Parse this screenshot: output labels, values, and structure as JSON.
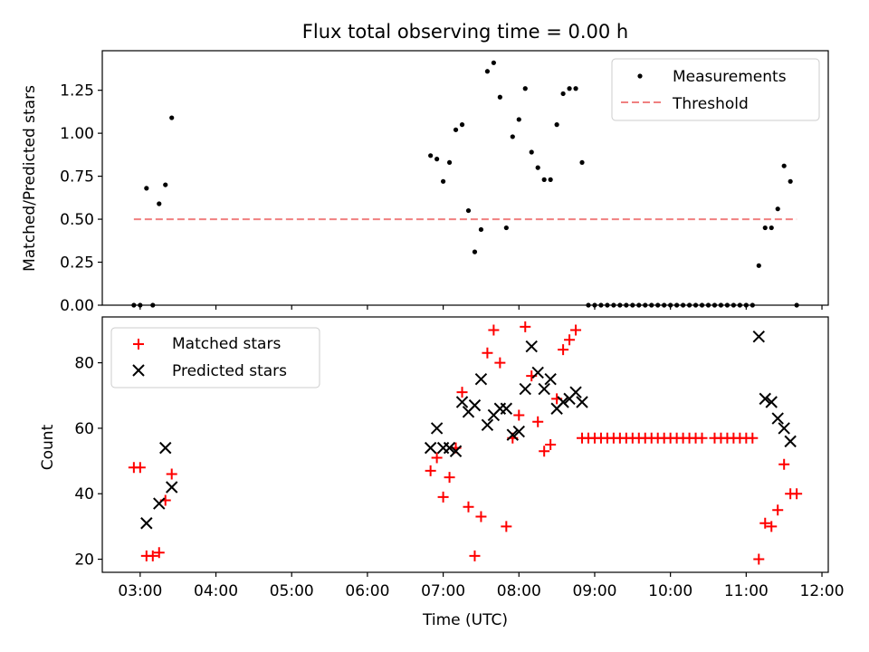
{
  "chart_data": [
    {
      "type": "scatter",
      "title": "Flux total observing time = 0.00 h",
      "ylabel": "Matched/Predicted stars",
      "xlabel": "",
      "xlim": [
        "02:30",
        "12:05"
      ],
      "ylim": [
        0,
        1.48
      ],
      "yticks": [
        "0.00",
        "0.25",
        "0.50",
        "0.75",
        "1.00",
        "1.25"
      ],
      "legend_position": "top-right",
      "legend": [
        "Measurements",
        "Threshold"
      ],
      "series": [
        {
          "name": "Measurements",
          "marker": "dot",
          "color": "#000000",
          "points": [
            [
              "02:55",
              0.0
            ],
            [
              "03:00",
              0.0
            ],
            [
              "03:05",
              0.68
            ],
            [
              "03:10",
              0.0
            ],
            [
              "03:15",
              0.59
            ],
            [
              "03:20",
              0.7
            ],
            [
              "03:25",
              1.09
            ],
            [
              "06:50",
              0.87
            ],
            [
              "06:55",
              0.85
            ],
            [
              "07:00",
              0.72
            ],
            [
              "07:05",
              0.83
            ],
            [
              "07:10",
              1.02
            ],
            [
              "07:15",
              1.05
            ],
            [
              "07:20",
              0.55
            ],
            [
              "07:25",
              0.31
            ],
            [
              "07:30",
              0.44
            ],
            [
              "07:35",
              1.36
            ],
            [
              "07:40",
              1.41
            ],
            [
              "07:45",
              1.21
            ],
            [
              "07:50",
              0.45
            ],
            [
              "07:55",
              0.98
            ],
            [
              "08:00",
              1.08
            ],
            [
              "08:05",
              1.26
            ],
            [
              "08:10",
              0.89
            ],
            [
              "08:15",
              0.8
            ],
            [
              "08:20",
              0.73
            ],
            [
              "08:25",
              0.73
            ],
            [
              "08:30",
              1.05
            ],
            [
              "08:35",
              1.23
            ],
            [
              "08:40",
              1.26
            ],
            [
              "08:45",
              1.26
            ],
            [
              "08:50",
              0.83
            ],
            [
              "08:55",
              0
            ],
            [
              "09:00",
              0
            ],
            [
              "09:05",
              0
            ],
            [
              "09:10",
              0
            ],
            [
              "09:15",
              0
            ],
            [
              "09:20",
              0
            ],
            [
              "09:25",
              0
            ],
            [
              "09:30",
              0
            ],
            [
              "09:35",
              0
            ],
            [
              "09:40",
              0
            ],
            [
              "09:45",
              0
            ],
            [
              "09:50",
              0
            ],
            [
              "09:55",
              0
            ],
            [
              "10:00",
              0
            ],
            [
              "10:05",
              0
            ],
            [
              "10:10",
              0
            ],
            [
              "10:15",
              0
            ],
            [
              "10:20",
              0
            ],
            [
              "10:25",
              0
            ],
            [
              "10:30",
              0
            ],
            [
              "10:35",
              0
            ],
            [
              "10:40",
              0
            ],
            [
              "10:45",
              0
            ],
            [
              "10:50",
              0
            ],
            [
              "10:55",
              0
            ],
            [
              "11:00",
              0
            ],
            [
              "11:05",
              0
            ],
            [
              "11:10",
              0.23
            ],
            [
              "11:15",
              0.45
            ],
            [
              "11:20",
              0.45
            ],
            [
              "11:25",
              0.56
            ],
            [
              "11:30",
              0.81
            ],
            [
              "11:35",
              0.72
            ],
            [
              "11:40",
              0.0
            ]
          ]
        },
        {
          "name": "Threshold",
          "marker": "dashed-line",
          "color": "#f08080",
          "points": [
            [
              "02:55",
              0.5
            ],
            [
              "11:40",
              0.5
            ]
          ]
        }
      ]
    },
    {
      "type": "scatter",
      "title": "",
      "ylabel": "Count",
      "xlabel": "Time (UTC)",
      "xlim": [
        "02:30",
        "12:05"
      ],
      "ylim": [
        16,
        94
      ],
      "yticks": [
        "20",
        "40",
        "60",
        "80"
      ],
      "xticks": [
        "03:00",
        "04:00",
        "05:00",
        "06:00",
        "07:00",
        "08:00",
        "09:00",
        "10:00",
        "11:00",
        "12:00"
      ],
      "legend_position": "top-left",
      "legend": [
        "Matched stars",
        "Predicted stars"
      ],
      "series": [
        {
          "name": "Matched stars",
          "marker": "plus",
          "color": "#ff0000",
          "points": [
            [
              "02:55",
              48
            ],
            [
              "03:00",
              48
            ],
            [
              "03:05",
              21
            ],
            [
              "03:10",
              21
            ],
            [
              "03:15",
              22
            ],
            [
              "03:20",
              38
            ],
            [
              "03:25",
              46
            ],
            [
              "06:50",
              47
            ],
            [
              "06:55",
              51
            ],
            [
              "07:00",
              39
            ],
            [
              "07:05",
              45
            ],
            [
              "07:10",
              54
            ],
            [
              "07:15",
              71
            ],
            [
              "07:20",
              36
            ],
            [
              "07:25",
              21
            ],
            [
              "07:30",
              33
            ],
            [
              "07:35",
              83
            ],
            [
              "07:40",
              90
            ],
            [
              "07:45",
              80
            ],
            [
              "07:50",
              30
            ],
            [
              "07:55",
              57
            ],
            [
              "08:00",
              64
            ],
            [
              "08:05",
              91
            ],
            [
              "08:10",
              76
            ],
            [
              "08:15",
              62
            ],
            [
              "08:20",
              53
            ],
            [
              "08:25",
              55
            ],
            [
              "08:30",
              69
            ],
            [
              "08:35",
              84
            ],
            [
              "08:40",
              87
            ],
            [
              "08:45",
              90
            ],
            [
              "08:50",
              57
            ],
            [
              "08:55",
              57
            ],
            [
              "09:00",
              57
            ],
            [
              "09:05",
              57
            ],
            [
              "09:10",
              57
            ],
            [
              "09:15",
              57
            ],
            [
              "09:20",
              57
            ],
            [
              "09:25",
              57
            ],
            [
              "09:30",
              57
            ],
            [
              "09:35",
              57
            ],
            [
              "09:40",
              57
            ],
            [
              "09:45",
              57
            ],
            [
              "09:50",
              57
            ],
            [
              "09:55",
              57
            ],
            [
              "10:00",
              57
            ],
            [
              "10:05",
              57
            ],
            [
              "10:10",
              57
            ],
            [
              "10:15",
              57
            ],
            [
              "10:20",
              57
            ],
            [
              "10:25",
              57
            ],
            [
              "10:35",
              57
            ],
            [
              "10:40",
              57
            ],
            [
              "10:45",
              57
            ],
            [
              "10:50",
              57
            ],
            [
              "10:55",
              57
            ],
            [
              "11:00",
              57
            ],
            [
              "11:05",
              57
            ],
            [
              "11:10",
              20
            ],
            [
              "11:15",
              31
            ],
            [
              "11:20",
              30
            ],
            [
              "11:25",
              35
            ],
            [
              "11:30",
              49
            ],
            [
              "11:35",
              40
            ],
            [
              "11:40",
              40
            ]
          ]
        },
        {
          "name": "Predicted stars",
          "marker": "x",
          "color": "#000000",
          "points": [
            [
              "03:05",
              31
            ],
            [
              "03:15",
              37
            ],
            [
              "03:20",
              54
            ],
            [
              "03:25",
              42
            ],
            [
              "06:50",
              54
            ],
            [
              "06:55",
              60
            ],
            [
              "07:00",
              54
            ],
            [
              "07:05",
              54
            ],
            [
              "07:10",
              53
            ],
            [
              "07:15",
              68
            ],
            [
              "07:20",
              65
            ],
            [
              "07:25",
              67
            ],
            [
              "07:30",
              75
            ],
            [
              "07:35",
              61
            ],
            [
              "07:40",
              64
            ],
            [
              "07:45",
              66
            ],
            [
              "07:50",
              66
            ],
            [
              "07:55",
              58
            ],
            [
              "08:00",
              59
            ],
            [
              "08:05",
              72
            ],
            [
              "08:10",
              85
            ],
            [
              "08:15",
              77
            ],
            [
              "08:20",
              72
            ],
            [
              "08:25",
              75
            ],
            [
              "08:30",
              66
            ],
            [
              "08:35",
              68
            ],
            [
              "08:40",
              69
            ],
            [
              "08:45",
              71
            ],
            [
              "08:50",
              68
            ],
            [
              "11:10",
              88
            ],
            [
              "11:15",
              69
            ],
            [
              "11:20",
              68
            ],
            [
              "11:25",
              63
            ],
            [
              "11:30",
              60
            ],
            [
              "11:35",
              56
            ]
          ]
        }
      ]
    }
  ]
}
